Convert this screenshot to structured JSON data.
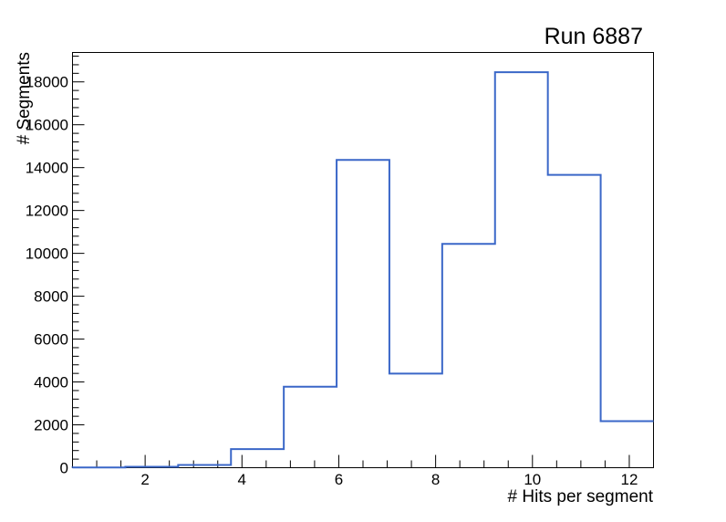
{
  "window": {
    "background_color": "#ffffff"
  },
  "chart_data": {
    "type": "histogram-step",
    "title": "Run 6887",
    "xlabel": "# Hits per segment",
    "ylabel": "# Segments",
    "xlim": [
      0.5,
      12.5
    ],
    "ylim": [
      0,
      19372
    ],
    "bin_edges": [
      0.5,
      1.591,
      2.682,
      3.773,
      4.864,
      5.955,
      7.045,
      8.136,
      9.227,
      10.318,
      11.409,
      12.5
    ],
    "values": [
      10,
      40,
      130,
      870,
      3780,
      14360,
      4390,
      10440,
      18450,
      13660,
      2170
    ],
    "x_major_ticks": [
      2,
      4,
      6,
      8,
      10,
      12
    ],
    "x_tick_labels": [
      "2",
      "4",
      "6",
      "8",
      "10",
      "12"
    ],
    "x_minor_step": 0.5,
    "y_major_ticks": [
      0,
      2000,
      4000,
      6000,
      8000,
      10000,
      12000,
      14000,
      16000,
      18000
    ],
    "y_tick_labels": [
      "0",
      "2000",
      "4000",
      "6000",
      "8000",
      "10000",
      "12000",
      "14000",
      "16000",
      "18000"
    ],
    "y_minor_step": 400,
    "grid": false,
    "legend": null,
    "line_color": "#3a67c8",
    "line_width": 2,
    "axis_color": "#000000"
  }
}
